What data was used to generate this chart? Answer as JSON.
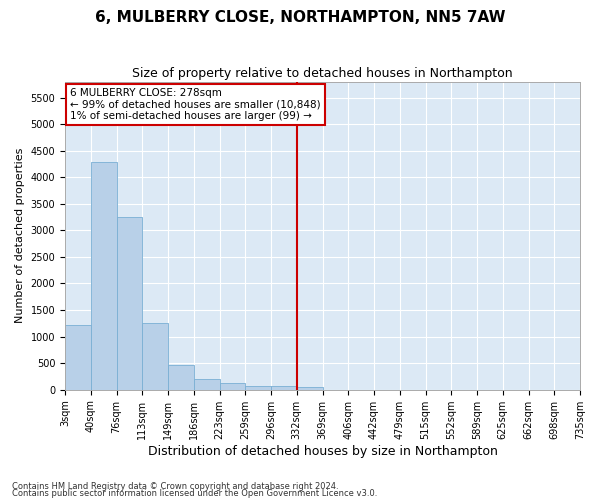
{
  "title": "6, MULBERRY CLOSE, NORTHAMPTON, NN5 7AW",
  "subtitle": "Size of property relative to detached houses in Northampton",
  "xlabel": "Distribution of detached houses by size in Northampton",
  "ylabel": "Number of detached properties",
  "footnote1": "Contains HM Land Registry data © Crown copyright and database right 2024.",
  "footnote2": "Contains public sector information licensed under the Open Government Licence v3.0.",
  "bar_color": "#b8d0e8",
  "bar_edge_color": "#7aafd4",
  "background_color": "#dce9f5",
  "fig_background": "#ffffff",
  "grid_color": "#ffffff",
  "vline_color": "#cc0000",
  "vline_x_index": 8,
  "annotation_text": "6 MULBERRY CLOSE: 278sqm\n← 99% of detached houses are smaller (10,848)\n1% of semi-detached houses are larger (99) →",
  "annotation_box_color": "#cc0000",
  "bin_labels": [
    "3sqm",
    "40sqm",
    "76sqm",
    "113sqm",
    "149sqm",
    "186sqm",
    "223sqm",
    "259sqm",
    "296sqm",
    "332sqm",
    "369sqm",
    "406sqm",
    "442sqm",
    "479sqm",
    "515sqm",
    "552sqm",
    "589sqm",
    "625sqm",
    "662sqm",
    "698sqm",
    "735sqm"
  ],
  "bar_heights": [
    1220,
    4280,
    3250,
    1250,
    460,
    200,
    135,
    75,
    75,
    50,
    0,
    0,
    0,
    0,
    0,
    0,
    0,
    0,
    0,
    0
  ],
  "ylim": [
    0,
    5800
  ],
  "yticks": [
    0,
    500,
    1000,
    1500,
    2000,
    2500,
    3000,
    3500,
    4000,
    4500,
    5000,
    5500
  ],
  "title_fontsize": 11,
  "subtitle_fontsize": 9,
  "tick_fontsize": 7,
  "ylabel_fontsize": 8,
  "xlabel_fontsize": 9,
  "annotation_fontsize": 7.5,
  "footnote_fontsize": 6
}
